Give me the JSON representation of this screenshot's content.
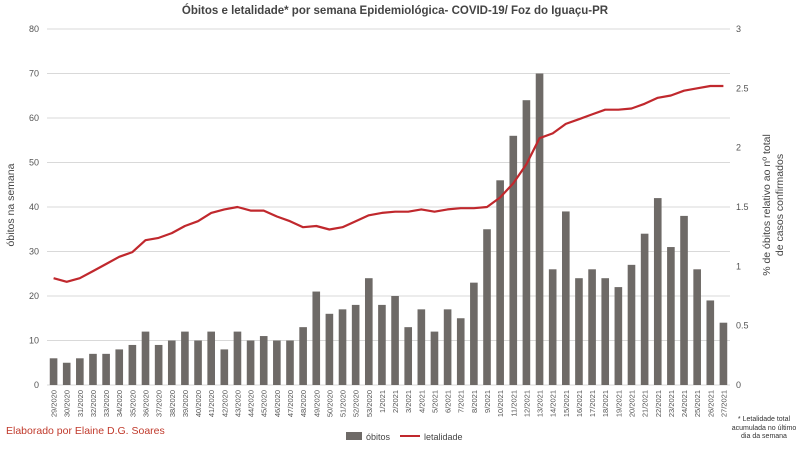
{
  "chart_data": {
    "type": "bar",
    "title": "Óbitos e letalidade*  por semana Epidemiológica- COVID-19/ Foz do Iguaçu-PR",
    "ylabel": "óbitos na semana",
    "y2label_line1": "% de óbitos relativo ao nº total",
    "y2label_line2": "de casos confirmados",
    "ylim": [
      0,
      80
    ],
    "yticks": [
      0,
      10,
      20,
      30,
      40,
      50,
      60,
      70,
      80
    ],
    "y2lim": [
      0,
      3
    ],
    "y2ticks": [
      0,
      0.5,
      1,
      1.5,
      2,
      2.5,
      3
    ],
    "y2tick_labels": [
      "0",
      "0.5",
      "1",
      "1.5",
      "2",
      "2.5",
      "3"
    ],
    "grid": true,
    "legend_position": "bottom",
    "categories": [
      "29/2020",
      "30/2020",
      "31/2020",
      "32/2020",
      "33/2020",
      "34/2020",
      "35/2020",
      "36/2020",
      "37/2020",
      "38/2020",
      "39/2020",
      "40/2020",
      "41/2020",
      "42/2020",
      "43/2020",
      "44/2020",
      "45/2020",
      "46/2020",
      "47/2020",
      "48/2020",
      "49/2020",
      "50/2020",
      "51/2020",
      "52/2020",
      "53/2020",
      "1/2021",
      "2/2021",
      "3/2021",
      "4/2021",
      "5/2021",
      "6/2021",
      "7/2021",
      "8/2021",
      "9/2021",
      "10/2021",
      "11/2021",
      "12/2021",
      "13/2021",
      "14/2021",
      "15/2021",
      "16/2021",
      "17/2021",
      "18/2021",
      "19/2021",
      "20/2021",
      "21/2021",
      "22/2021",
      "23/2021",
      "24/2021",
      "25/2021",
      "26/2021",
      "27/2021"
    ],
    "series": [
      {
        "name": "óbitos",
        "type": "bar",
        "axis": "left",
        "color": "#6e6a67",
        "values": [
          6,
          5,
          6,
          7,
          7,
          8,
          9,
          12,
          9,
          10,
          12,
          10,
          12,
          8,
          12,
          10,
          11,
          10,
          10,
          13,
          21,
          16,
          17,
          18,
          24,
          18,
          20,
          13,
          17,
          12,
          17,
          15,
          23,
          35,
          46,
          56,
          64,
          70,
          26,
          39,
          24,
          26,
          24,
          22,
          27,
          34,
          42,
          31,
          38,
          26,
          19,
          14
        ]
      },
      {
        "name": "letalidade",
        "type": "line",
        "axis": "right",
        "color": "#c0282d",
        "values": [
          0.9,
          0.87,
          0.9,
          0.96,
          1.02,
          1.08,
          1.12,
          1.22,
          1.24,
          1.28,
          1.34,
          1.38,
          1.45,
          1.48,
          1.5,
          1.47,
          1.47,
          1.42,
          1.38,
          1.33,
          1.34,
          1.31,
          1.33,
          1.38,
          1.43,
          1.45,
          1.46,
          1.46,
          1.48,
          1.46,
          1.48,
          1.49,
          1.49,
          1.5,
          1.58,
          1.7,
          1.86,
          2.08,
          2.12,
          2.2,
          2.24,
          2.28,
          2.32,
          2.32,
          2.33,
          2.37,
          2.42,
          2.44,
          2.48,
          2.5,
          2.52,
          2.52
        ]
      }
    ]
  },
  "credit": "Elaborado por Elaine D.G. Soares",
  "footnote_lines": [
    "* Letalidade total",
    "acumulada no último",
    "dia da semana"
  ]
}
